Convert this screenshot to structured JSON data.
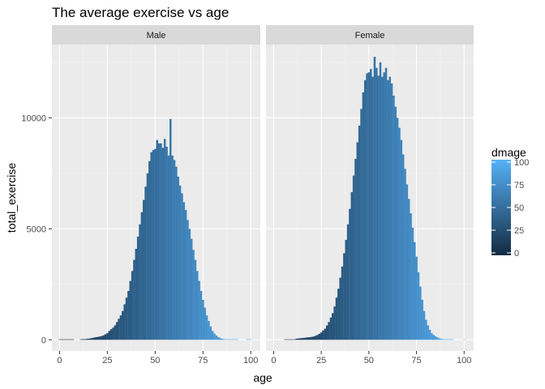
{
  "chart_data": {
    "type": "bar",
    "title": "The average exercise vs age",
    "xlabel": "age",
    "ylabel": "total_exercise",
    "xlim": [
      -4,
      105
    ],
    "ylim": [
      -500,
      13300
    ],
    "x_ticks": [
      0,
      25,
      50,
      75,
      100
    ],
    "y_ticks": [
      0,
      5000,
      10000
    ],
    "grid": true,
    "legend": {
      "title": "dmage",
      "position": "right",
      "ticks": [
        0,
        25,
        50,
        75,
        100
      ],
      "color_low": "#132B43",
      "color_high": "#56B1F7"
    },
    "panels": [
      {
        "strip": "Male",
        "x": [
          0,
          1,
          2,
          3,
          4,
          5,
          6,
          7,
          8,
          9,
          10,
          11,
          12,
          13,
          14,
          15,
          16,
          17,
          18,
          19,
          20,
          21,
          22,
          23,
          24,
          25,
          26,
          27,
          28,
          29,
          30,
          31,
          32,
          33,
          34,
          35,
          36,
          37,
          38,
          39,
          40,
          41,
          42,
          43,
          44,
          45,
          46,
          47,
          48,
          49,
          50,
          51,
          52,
          53,
          54,
          55,
          56,
          57,
          58,
          59,
          60,
          61,
          62,
          63,
          64,
          65,
          66,
          67,
          68,
          69,
          70,
          71,
          72,
          73,
          74,
          75,
          76,
          77,
          78,
          79,
          80,
          81,
          82,
          83,
          84,
          85,
          86,
          87,
          88,
          89,
          90,
          91,
          92,
          93,
          94,
          95,
          96,
          97,
          98,
          99,
          100
        ],
        "values": [
          20,
          20,
          20,
          20,
          20,
          20,
          20,
          20,
          0,
          0,
          0,
          10,
          30,
          30,
          40,
          50,
          60,
          80,
          100,
          120,
          130,
          150,
          170,
          200,
          250,
          300,
          400,
          480,
          550,
          650,
          800,
          950,
          1100,
          1300,
          1600,
          1900,
          2200,
          2650,
          3100,
          3600,
          4100,
          4650,
          5200,
          5750,
          6300,
          6900,
          7500,
          8050,
          8450,
          8550,
          8600,
          9000,
          8850,
          8850,
          8650,
          9050,
          8700,
          8300,
          9950,
          8300,
          8100,
          7800,
          7350,
          6950,
          6600,
          6200,
          5850,
          5400,
          5000,
          4550,
          4050,
          3600,
          3100,
          2650,
          2200,
          1800,
          1450,
          1100,
          850,
          600,
          400,
          280,
          190,
          120,
          80,
          50,
          30,
          20,
          10,
          10,
          10,
          5,
          5,
          5,
          0,
          0,
          0,
          0,
          10,
          10,
          10
        ]
      },
      {
        "strip": "Female",
        "x": [
          0,
          1,
          2,
          3,
          4,
          5,
          6,
          7,
          8,
          9,
          10,
          11,
          12,
          13,
          14,
          15,
          16,
          17,
          18,
          19,
          20,
          21,
          22,
          23,
          24,
          25,
          26,
          27,
          28,
          29,
          30,
          31,
          32,
          33,
          34,
          35,
          36,
          37,
          38,
          39,
          40,
          41,
          42,
          43,
          44,
          45,
          46,
          47,
          48,
          49,
          50,
          51,
          52,
          53,
          54,
          55,
          56,
          57,
          58,
          59,
          60,
          61,
          62,
          63,
          64,
          65,
          66,
          67,
          68,
          69,
          70,
          71,
          72,
          73,
          74,
          75,
          76,
          77,
          78,
          79,
          80,
          81,
          82,
          83,
          84,
          85,
          86,
          87,
          88,
          89,
          90,
          91,
          92,
          93,
          94,
          95,
          96,
          97,
          98,
          99,
          100
        ],
        "values": [
          0,
          0,
          0,
          0,
          0,
          0,
          10,
          20,
          20,
          20,
          20,
          20,
          50,
          60,
          70,
          80,
          90,
          100,
          110,
          120,
          130,
          150,
          180,
          220,
          270,
          330,
          420,
          500,
          650,
          800,
          1000,
          1200,
          1500,
          1900,
          2300,
          2800,
          3300,
          3900,
          4500,
          5200,
          5900,
          6650,
          7400,
          8150,
          8900,
          9650,
          10400,
          11150,
          11700,
          12000,
          12050,
          12200,
          11850,
          12750,
          12250,
          11900,
          12500,
          11850,
          12050,
          12250,
          11700,
          11850,
          11550,
          11000,
          10500,
          10000,
          9550,
          9000,
          8350,
          7700,
          7000,
          6350,
          5700,
          5050,
          4400,
          3750,
          3050,
          2400,
          1800,
          1300,
          900,
          650,
          450,
          300,
          220,
          160,
          110,
          70,
          40,
          30,
          20,
          10,
          10,
          5,
          5,
          0,
          0,
          0,
          0,
          0,
          10
        ]
      }
    ]
  }
}
